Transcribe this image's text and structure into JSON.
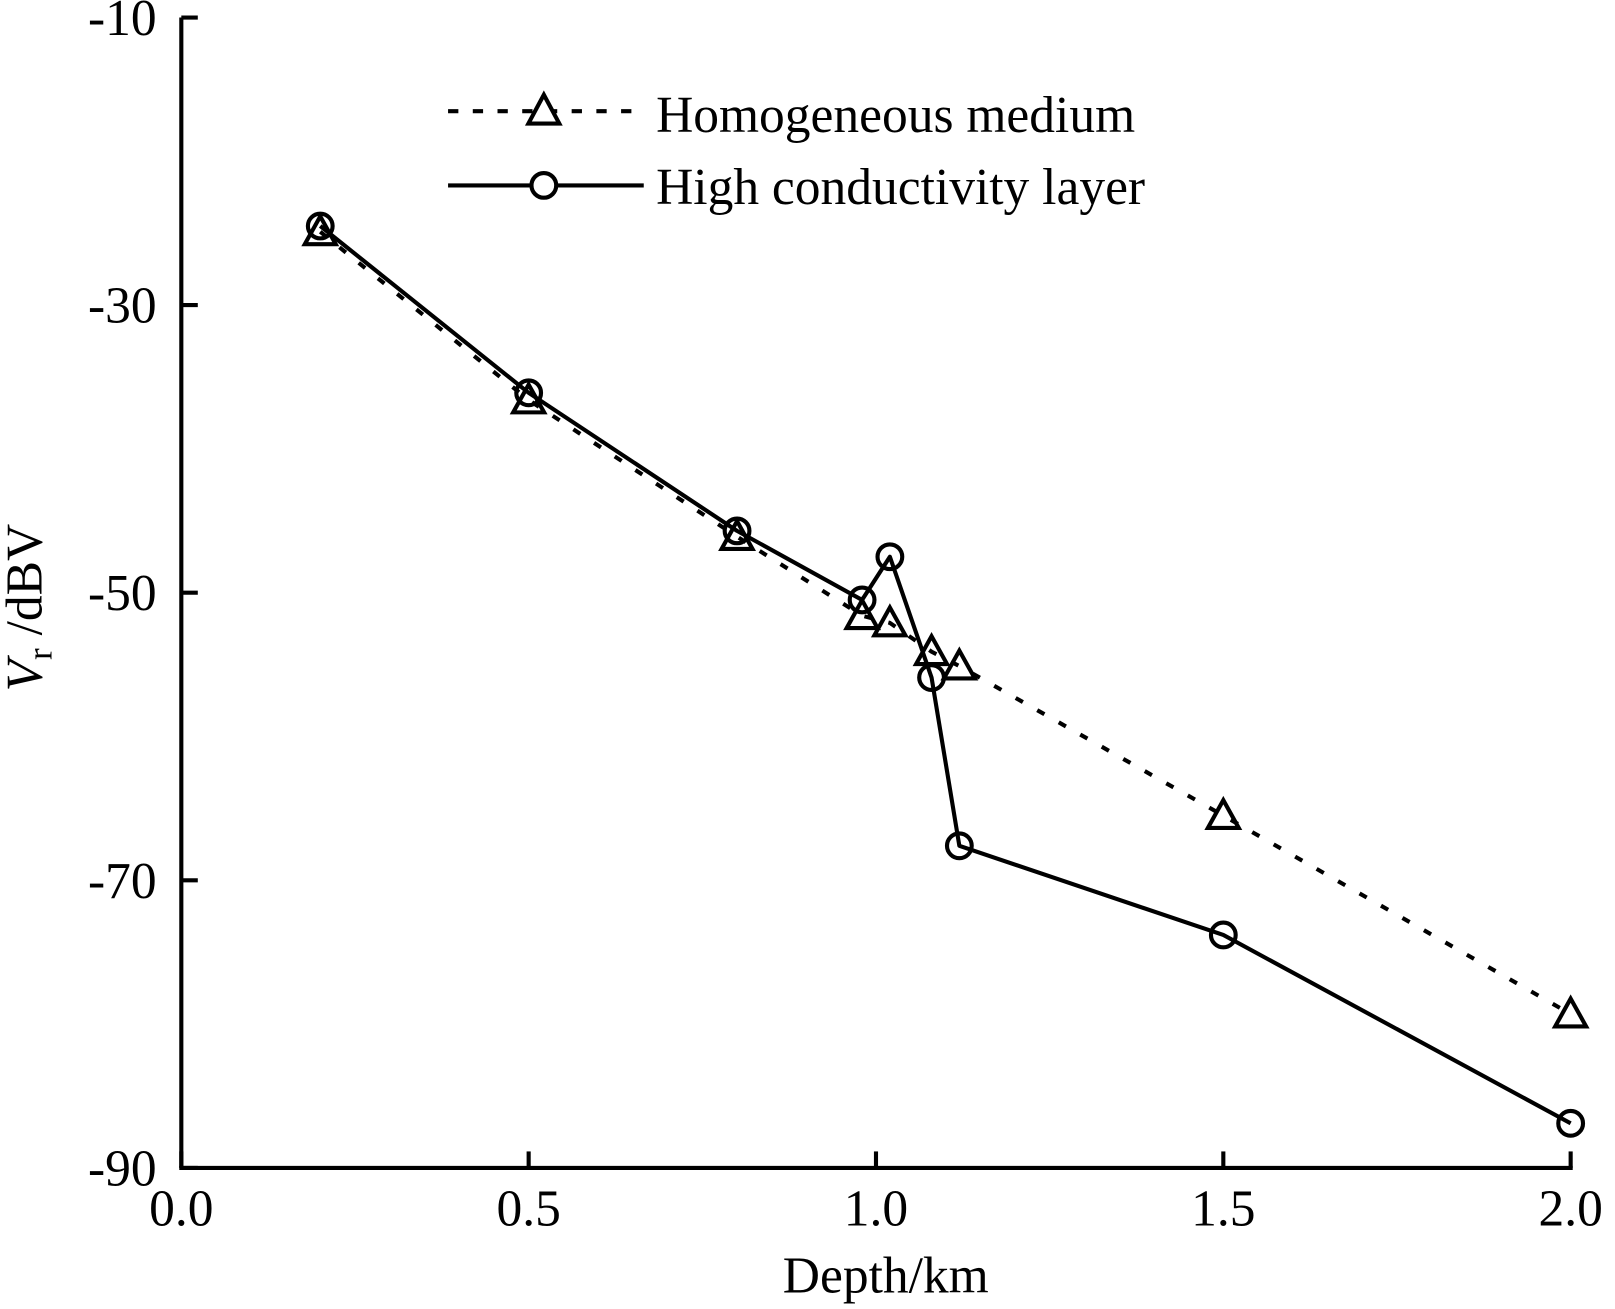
{
  "chart_data": {
    "type": "line",
    "title": "",
    "xlabel": "Depth/km",
    "ylabel_main": "V",
    "ylabel_sub": "r",
    "ylabel_rest": " /dBV",
    "xlim": [
      0.0,
      2.0
    ],
    "ylim": [
      -90,
      -10
    ],
    "xticks": [
      "0.0",
      "0.5",
      "1.0",
      "1.5",
      "2.0"
    ],
    "yticks": [
      "-10",
      "-30",
      "-50",
      "-70",
      "-90"
    ],
    "grid": false,
    "legend_position": "top-center",
    "series": [
      {
        "name": "Homogeneous medium",
        "style": "dotted",
        "marker": "triangle",
        "color": "#000000",
        "x": [
          0.2,
          0.5,
          0.8,
          0.98,
          1.02,
          1.08,
          1.12,
          1.5,
          2.0
        ],
        "y": [
          -24.9,
          -36.6,
          -46.1,
          -51.6,
          -52.1,
          -54.1,
          -55.1,
          -65.5,
          -79.3
        ]
      },
      {
        "name": "High conductivity layer",
        "style": "solid",
        "marker": "circle",
        "color": "#000000",
        "x": [
          0.2,
          0.5,
          0.8,
          0.98,
          1.02,
          1.08,
          1.12,
          1.5,
          2.0
        ],
        "y": [
          -24.5,
          -36.1,
          -45.7,
          -50.5,
          -47.5,
          -55.9,
          -67.6,
          -73.8,
          -86.9
        ]
      }
    ]
  }
}
